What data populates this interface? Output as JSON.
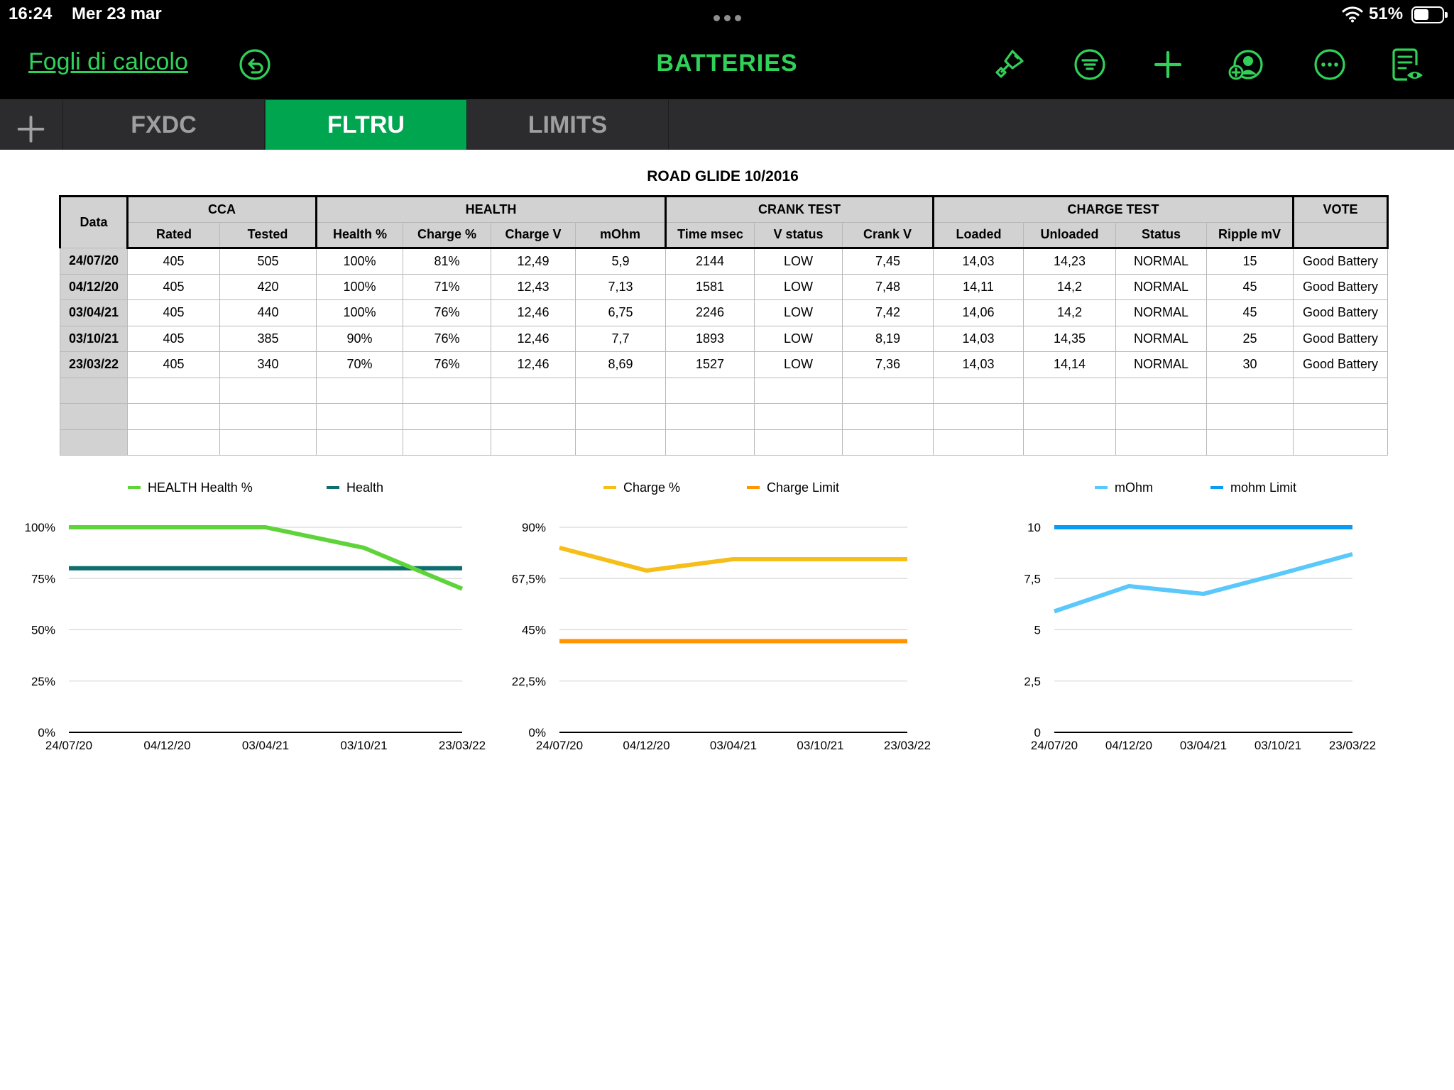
{
  "status_bar": {
    "time": "16:24",
    "date": "Mer 23 mar",
    "battery": "51%",
    "battery_level": 0.51
  },
  "toolbar": {
    "back_label": "Fogli di calcolo",
    "title": "BATTERIES",
    "icons": [
      "undo-icon",
      "paintbrush-icon",
      "filter-icon",
      "add-icon",
      "collaborate-icon",
      "more-icon",
      "document-view-icon"
    ]
  },
  "tabs": [
    {
      "label": "FXDC",
      "active": false
    },
    {
      "label": "FLTRU",
      "active": true
    },
    {
      "label": "LIMITS",
      "active": false
    }
  ],
  "sheet": {
    "title": "ROAD GLIDE 10/2016",
    "header_groups": {
      "data": "Data",
      "cca": "CCA",
      "health": "HEALTH",
      "crank": "CRANK TEST",
      "charge": "CHARGE TEST",
      "vote": "VOTE"
    },
    "columns": [
      "Rated",
      "Tested",
      "Health %",
      "Charge %",
      "Charge V",
      "mOhm",
      "Time msec",
      "V status",
      "Crank V",
      "Loaded",
      "Unloaded",
      "Status",
      "Ripple mV"
    ],
    "rows": [
      [
        "24/07/20",
        "405",
        "505",
        "100%",
        "81%",
        "12,49",
        "5,9",
        "2144",
        "LOW",
        "7,45",
        "14,03",
        "14,23",
        "NORMAL",
        "15",
        "Good Battery"
      ],
      [
        "04/12/20",
        "405",
        "420",
        "100%",
        "71%",
        "12,43",
        "7,13",
        "1581",
        "LOW",
        "7,48",
        "14,11",
        "14,2",
        "NORMAL",
        "45",
        "Good Battery"
      ],
      [
        "03/04/21",
        "405",
        "440",
        "100%",
        "76%",
        "12,46",
        "6,75",
        "2246",
        "LOW",
        "7,42",
        "14,06",
        "14,2",
        "NORMAL",
        "45",
        "Good Battery"
      ],
      [
        "03/10/21",
        "405",
        "385",
        "90%",
        "76%",
        "12,46",
        "7,7",
        "1893",
        "LOW",
        "8,19",
        "14,03",
        "14,35",
        "NORMAL",
        "25",
        "Good Battery"
      ],
      [
        "23/03/22",
        "405",
        "340",
        "70%",
        "76%",
        "12,46",
        "8,69",
        "1527",
        "LOW",
        "7,36",
        "14,03",
        "14,14",
        "NORMAL",
        "30",
        "Good Battery"
      ],
      [
        "",
        "",
        "",
        "",
        "",
        "",
        "",
        "",
        "",
        "",
        "",
        "",
        "",
        "",
        ""
      ],
      [
        "",
        "",
        "",
        "",
        "",
        "",
        "",
        "",
        "",
        "",
        "",
        "",
        "",
        "",
        ""
      ],
      [
        "",
        "",
        "",
        "",
        "",
        "",
        "",
        "",
        "",
        "",
        "",
        "",
        "",
        "",
        ""
      ]
    ]
  },
  "chart_data": [
    {
      "type": "line",
      "categories": [
        "24/07/20",
        "04/12/20",
        "03/04/21",
        "03/10/21",
        "23/03/22"
      ],
      "series": [
        {
          "name": "HEALTH Health %",
          "values": [
            100,
            100,
            100,
            90,
            70
          ],
          "color": "#5fd43a"
        },
        {
          "name": "Health",
          "values": [
            80,
            80,
            80,
            80,
            80
          ],
          "color": "#0f6e6e"
        }
      ],
      "ylim": [
        0,
        100
      ],
      "yticks": [
        0,
        25,
        50,
        75,
        100
      ],
      "ytick_labels": [
        "0%",
        "25%",
        "50%",
        "75%",
        "100%"
      ],
      "grid": true,
      "legend": "top"
    },
    {
      "type": "line",
      "categories": [
        "24/07/20",
        "04/12/20",
        "03/04/21",
        "03/10/21",
        "23/03/22"
      ],
      "series": [
        {
          "name": "Charge %",
          "values": [
            81,
            71,
            76,
            76,
            76
          ],
          "color": "#f5be18"
        },
        {
          "name": "Charge Limit",
          "values": [
            40,
            40,
            40,
            40,
            40
          ],
          "color": "#ff9500"
        }
      ],
      "ylim": [
        0,
        90
      ],
      "yticks": [
        0,
        22.5,
        45,
        67.5,
        90
      ],
      "ytick_labels": [
        "0%",
        "22,5%",
        "45%",
        "67,5%",
        "90%"
      ],
      "grid": true,
      "legend": "top"
    },
    {
      "type": "line",
      "categories": [
        "24/07/20",
        "04/12/20",
        "03/04/21",
        "03/10/21",
        "23/03/22"
      ],
      "series": [
        {
          "name": "mOhm",
          "values": [
            5.9,
            7.13,
            6.75,
            7.7,
            8.69
          ],
          "color": "#5ac8fa"
        },
        {
          "name": "mohm Limit",
          "values": [
            10,
            10,
            10,
            10,
            10
          ],
          "color": "#0a9cf0"
        }
      ],
      "ylim": [
        0,
        10
      ],
      "yticks": [
        0,
        2.5,
        5,
        7.5,
        10
      ],
      "ytick_labels": [
        "0",
        "2,5",
        "5",
        "7,5",
        "10"
      ],
      "grid": true,
      "legend": "top"
    }
  ]
}
